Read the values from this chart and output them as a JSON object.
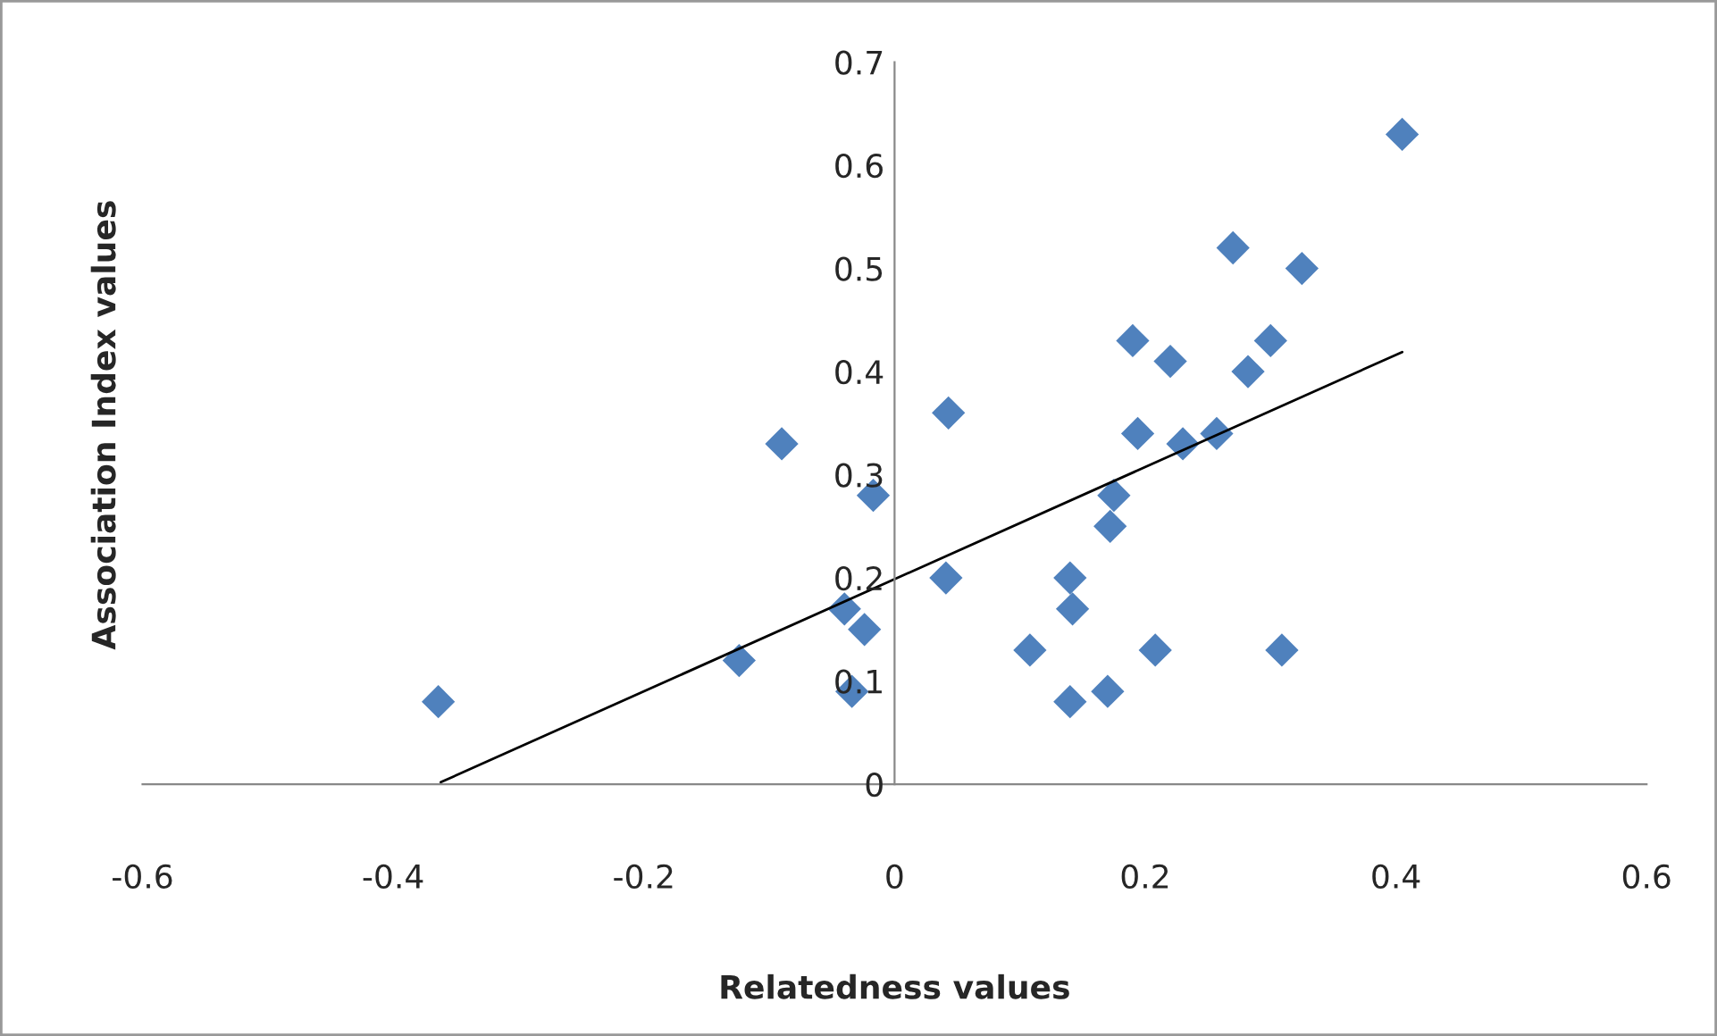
{
  "chart_data": {
    "type": "scatter",
    "xlabel": "Relatedness values",
    "ylabel": "Association Index values",
    "xlim": [
      -0.6,
      0.6
    ],
    "xticks": [
      -0.6,
      -0.4,
      -0.2,
      0,
      0.2,
      0.4,
      0.6
    ],
    "ylim": [
      0,
      0.7
    ],
    "yticks": [
      0,
      0.1,
      0.2,
      0.3,
      0.4,
      0.5,
      0.6,
      0.7
    ],
    "grid": false,
    "legend": false,
    "series": [
      {
        "marker": "diamond",
        "color": "#4f81bd",
        "x": [
          -0.364,
          -0.124,
          -0.09,
          -0.017,
          -0.04,
          -0.024,
          -0.034,
          0.043,
          0.041,
          0.108,
          0.14,
          0.142,
          0.14,
          0.17,
          0.172,
          0.175,
          0.19,
          0.194,
          0.208,
          0.22,
          0.23,
          0.257,
          0.27,
          0.282,
          0.3,
          0.309,
          0.325,
          0.405
        ],
        "values": [
          0.08,
          0.12,
          0.33,
          0.28,
          0.17,
          0.15,
          0.09,
          0.36,
          0.2,
          0.13,
          0.2,
          0.17,
          0.08,
          0.09,
          0.25,
          0.28,
          0.43,
          0.34,
          0.13,
          0.41,
          0.33,
          0.34,
          0.52,
          0.4,
          0.43,
          0.13,
          0.5,
          0.63
        ]
      },
      {
        "type": "line",
        "marker": "none",
        "color": "#000000",
        "x": [
          -0.362,
          0.405
        ],
        "values": [
          0.002,
          0.419
        ]
      }
    ]
  }
}
